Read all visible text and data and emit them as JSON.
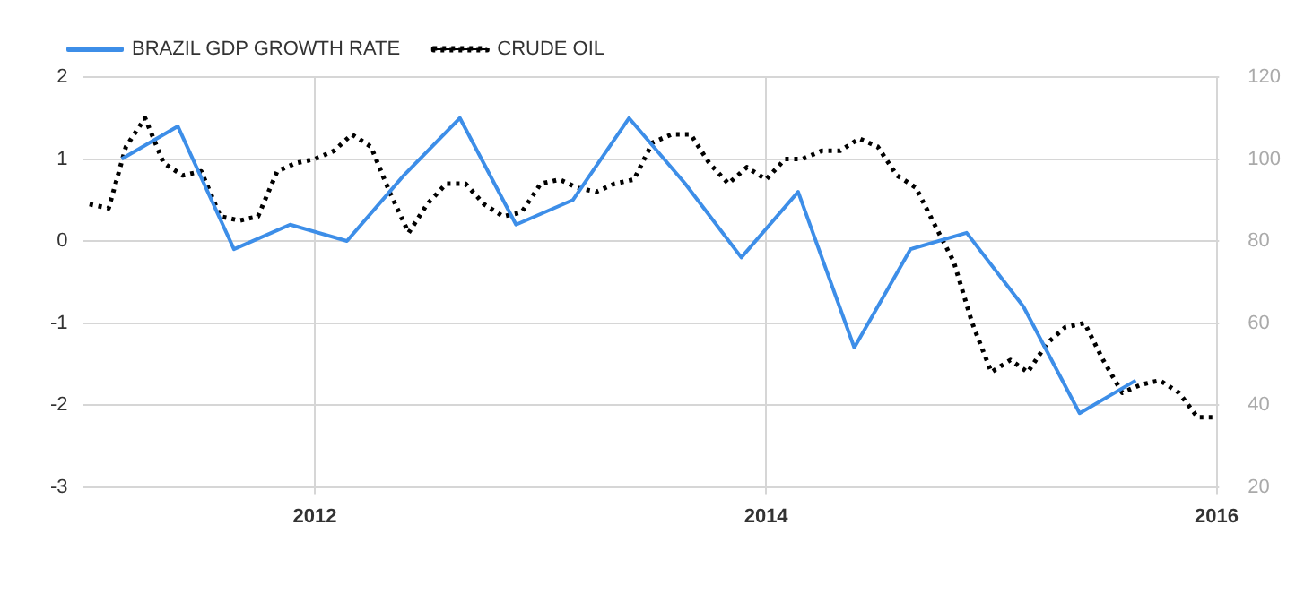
{
  "chart_data": {
    "type": "line",
    "xlim": [
      "2010-12-20",
      "2016-01-05"
    ],
    "xticks": [
      "2012",
      "2014",
      "2016"
    ],
    "ylim": [
      -3,
      2
    ],
    "yticks": [
      -3,
      -2,
      -1,
      0,
      1,
      2
    ],
    "y2lim": [
      20,
      120
    ],
    "y2ticks": [
      20,
      40,
      60,
      80,
      100,
      120
    ],
    "grid": true,
    "legend": "top left",
    "marker": "none",
    "series": [
      {
        "name": "BRAZIL GDP GROWTH RATE",
        "color": "#3d8ee8",
        "line_style": "solid",
        "x": [
          "2011-02-22",
          "2011-05-24",
          "2011-08-23",
          "2011-11-22",
          "2012-02-22",
          "2012-05-24",
          "2012-08-23",
          "2012-11-22",
          "2013-02-22",
          "2013-05-24",
          "2013-08-23",
          "2013-11-22",
          "2014-02-22",
          "2014-05-24",
          "2014-08-23",
          "2014-11-22",
          "2015-02-22",
          "2015-05-24",
          "2015-08-23"
        ],
        "values": [
          1.0,
          1.4,
          -0.1,
          0.2,
          0.0,
          0.8,
          1.5,
          0.2,
          0.5,
          1.5,
          0.7,
          -0.2,
          0.6,
          -1.3,
          -0.1,
          0.1,
          -0.8,
          -2.1,
          -1.7
        ]
      },
      {
        "name": "CRUDE OIL",
        "color": "#000000",
        "line_style": "dotted",
        "axis": "y2",
        "x": [
          "2011-01",
          "2011-02",
          "2011-03",
          "2011-04",
          "2011-05",
          "2011-06",
          "2011-07",
          "2011-08",
          "2011-09",
          "2011-10",
          "2011-11",
          "2011-12",
          "2012-01",
          "2012-02",
          "2012-03",
          "2012-04",
          "2012-05",
          "2012-06",
          "2012-07",
          "2012-08",
          "2012-09",
          "2012-10",
          "2012-11",
          "2012-12",
          "2013-01",
          "2013-02",
          "2013-03",
          "2013-04",
          "2013-05",
          "2013-06",
          "2013-07",
          "2013-08",
          "2013-09",
          "2013-10",
          "2013-11",
          "2013-12",
          "2014-01",
          "2014-02",
          "2014-03",
          "2014-04",
          "2014-05",
          "2014-06",
          "2014-07",
          "2014-08",
          "2014-09",
          "2014-10",
          "2014-11",
          "2014-12",
          "2015-01",
          "2015-02",
          "2015-03",
          "2015-04",
          "2015-05",
          "2015-06",
          "2015-07",
          "2015-08",
          "2015-09",
          "2015-10",
          "2015-11",
          "2015-12",
          "2016-01"
        ],
        "values": [
          89,
          88,
          103,
          110,
          99,
          96,
          97,
          86,
          85,
          86,
          97,
          99,
          100,
          102,
          106,
          103,
          92,
          82,
          89,
          94,
          94,
          89,
          86,
          87,
          94,
          95,
          93,
          92,
          94,
          95,
          104,
          106,
          106,
          99,
          94,
          98,
          95,
          100,
          100,
          102,
          102,
          105,
          103,
          96,
          93,
          84,
          75,
          60,
          48,
          51,
          48,
          55,
          59,
          60,
          51,
          43,
          45,
          46,
          43,
          37,
          37
        ]
      }
    ]
  }
}
